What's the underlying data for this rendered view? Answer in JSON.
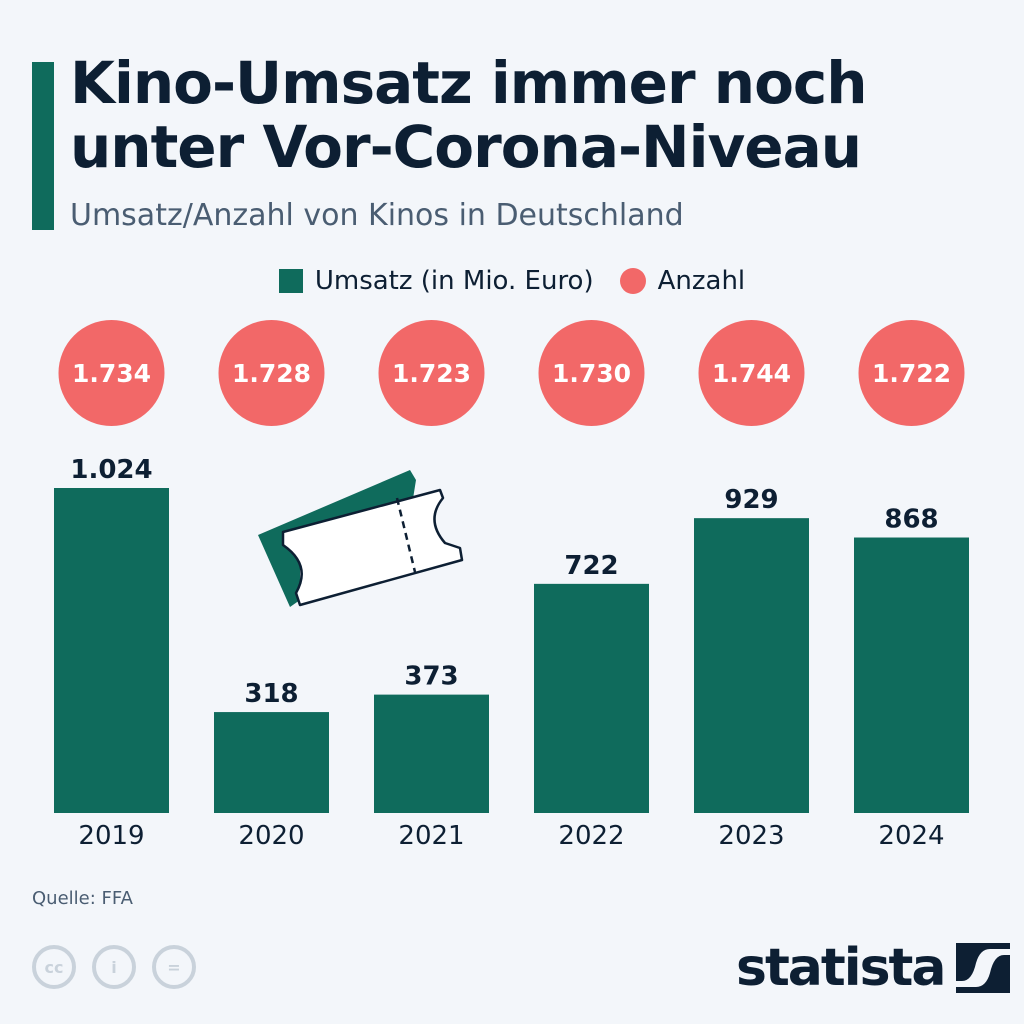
{
  "title": "Kino-Umsatz immer noch unter Vor-Corona-Niveau",
  "subtitle": "Umsatz/Anzahl von Kinos in Deutschland",
  "source": "Quelle: FFA",
  "logo": "statista",
  "colors": {
    "bar": "#0f6b5c",
    "circle": "#f26868",
    "text": "#0d1f33",
    "background": "#f3f6fa"
  },
  "icons": [
    "cinema-ticket-icon",
    "cc-icon",
    "by-icon",
    "nd-icon",
    "statista-logo-icon"
  ],
  "chart_data": {
    "type": "bar",
    "categories": [
      "2019",
      "2020",
      "2021",
      "2022",
      "2023",
      "2024"
    ],
    "series": [
      {
        "name": "Umsatz (in Mio. Euro)",
        "values": [
          1024,
          318,
          373,
          722,
          929,
          868
        ],
        "labels": [
          "1.024",
          "318",
          "373",
          "722",
          "929",
          "868"
        ]
      },
      {
        "name": "Anzahl",
        "values": [
          1734,
          1728,
          1723,
          1730,
          1744,
          1722
        ],
        "labels": [
          "1.734",
          "1.728",
          "1.723",
          "1.730",
          "1.744",
          "1.722"
        ],
        "style": "circle-labels"
      }
    ],
    "ylim": [
      0,
      1024
    ],
    "grid": false,
    "legend": "top-center"
  }
}
